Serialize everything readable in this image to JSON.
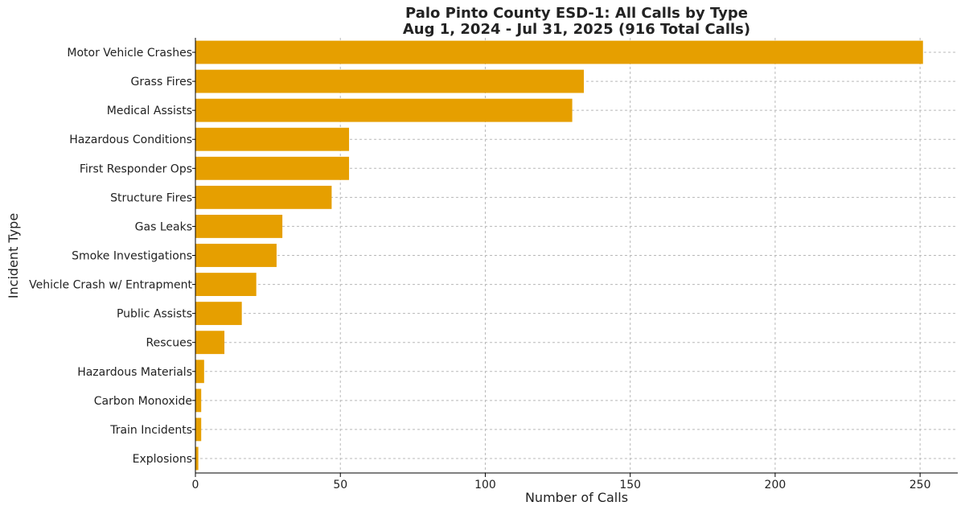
{
  "chart_data": {
    "type": "bar",
    "orientation": "horizontal",
    "title": "Palo Pinto County ESD-1: All Calls by Type",
    "subtitle": "Aug 1, 2024 - Jul 31, 2025 (916 Total Calls)",
    "xlabel": "Number of Calls",
    "ylabel": "Incident Type",
    "xlim": [
      0,
      263
    ],
    "xticks": [
      0,
      50,
      100,
      150,
      200,
      250
    ],
    "grid": true,
    "bar_color": "#E69F00",
    "categories": [
      "Motor Vehicle Crashes",
      "Grass Fires",
      "Medical Assists",
      "Hazardous Conditions",
      "First Responder Ops",
      "Structure Fires",
      "Gas Leaks",
      "Smoke Investigations",
      "Vehicle Crash w/ Entrapment",
      "Public Assists",
      "Rescues",
      "Hazardous Materials",
      "Carbon Monoxide",
      "Train Incidents",
      "Explosions"
    ],
    "values": [
      251,
      134,
      130,
      53,
      53,
      47,
      30,
      28,
      21,
      16,
      10,
      3,
      2,
      2,
      1
    ]
  }
}
